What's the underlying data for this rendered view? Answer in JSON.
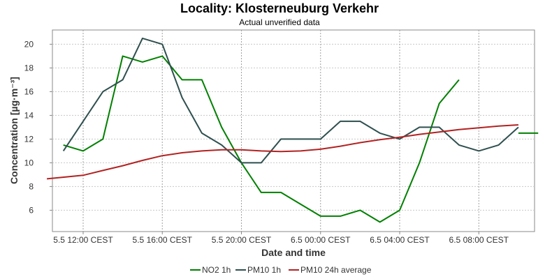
{
  "chart_data": {
    "type": "line",
    "title": "Locality: Klosterneuburg Verkehr",
    "subtitle": "Actual unverified data",
    "xlabel": "Date and time",
    "ylabel": "Concentration [µg·m⁻³]",
    "x_ticks": [
      "5.5 12:00 CEST",
      "5.5 16:00 CEST",
      "5.5 20:00 CEST",
      "6.5 00:00 CEST",
      "6.5 04:00 CEST",
      "6.5 08:00 CEST"
    ],
    "y_ticks": [
      "6",
      "8",
      "10",
      "12",
      "14",
      "16",
      "18",
      "20"
    ],
    "ylim": [
      4.2,
      21.2
    ],
    "xlim": [
      "2024-05-05 10:10",
      "2024-05-06 11:10"
    ],
    "grid": true,
    "legend_position": "bottom",
    "series": [
      {
        "name": "NO2 1h",
        "color": "#008000",
        "points": [
          {
            "x": "2024-05-05 11:00",
            "y": 11.5
          },
          {
            "x": "2024-05-05 12:00",
            "y": 11.0
          },
          {
            "x": "2024-05-05 13:00",
            "y": 12.0
          },
          {
            "x": "2024-05-05 14:00",
            "y": 19.0
          },
          {
            "x": "2024-05-05 15:00",
            "y": 18.5
          },
          {
            "x": "2024-05-05 16:00",
            "y": 19.0
          },
          {
            "x": "2024-05-05 17:00",
            "y": 17.0
          },
          {
            "x": "2024-05-05 18:00",
            "y": 17.0
          },
          {
            "x": "2024-05-05 19:00",
            "y": 13.0
          },
          {
            "x": "2024-05-05 20:00",
            "y": 10.0
          },
          {
            "x": "2024-05-05 21:00",
            "y": 7.5
          },
          {
            "x": "2024-05-05 22:00",
            "y": 7.5
          },
          {
            "x": "2024-05-05 23:00",
            "y": 6.5
          },
          {
            "x": "2024-05-06 00:00",
            "y": 5.5
          },
          {
            "x": "2024-05-06 01:00",
            "y": 5.5
          },
          {
            "x": "2024-05-06 02:00",
            "y": 6.0
          },
          {
            "x": "2024-05-06 03:00",
            "y": 5.0
          },
          {
            "x": "2024-05-06 04:00",
            "y": 6.0
          },
          {
            "x": "2024-05-06 05:00",
            "y": 10.0
          },
          {
            "x": "2024-05-06 06:00",
            "y": 15.0
          },
          {
            "x": "2024-05-06 07:00",
            "y": 17.0
          },
          {
            "x": "2024-05-06 08:00",
            "y": null
          },
          {
            "x": "2024-05-06 09:00",
            "y": null
          },
          {
            "x": "2024-05-06 10:00",
            "y": 12.5
          },
          {
            "x": "2024-05-06 11:00",
            "y": 12.5
          }
        ]
      },
      {
        "name": "PM10 1h",
        "color": "#2f4f4f",
        "points": [
          {
            "x": "2024-05-05 11:00",
            "y": 11.0
          },
          {
            "x": "2024-05-05 12:00",
            "y": 13.5
          },
          {
            "x": "2024-05-05 13:00",
            "y": 16.0
          },
          {
            "x": "2024-05-05 14:00",
            "y": 17.0
          },
          {
            "x": "2024-05-05 15:00",
            "y": 20.5
          },
          {
            "x": "2024-05-05 16:00",
            "y": 20.0
          },
          {
            "x": "2024-05-05 17:00",
            "y": 15.5
          },
          {
            "x": "2024-05-05 18:00",
            "y": 12.5
          },
          {
            "x": "2024-05-05 19:00",
            "y": 11.5
          },
          {
            "x": "2024-05-05 20:00",
            "y": 10.0
          },
          {
            "x": "2024-05-05 21:00",
            "y": 10.0
          },
          {
            "x": "2024-05-05 22:00",
            "y": 12.0
          },
          {
            "x": "2024-05-05 23:00",
            "y": 12.0
          },
          {
            "x": "2024-05-06 00:00",
            "y": 12.0
          },
          {
            "x": "2024-05-06 01:00",
            "y": 13.5
          },
          {
            "x": "2024-05-06 02:00",
            "y": 13.5
          },
          {
            "x": "2024-05-06 03:00",
            "y": 12.5
          },
          {
            "x": "2024-05-06 04:00",
            "y": 12.0
          },
          {
            "x": "2024-05-06 05:00",
            "y": 13.0
          },
          {
            "x": "2024-05-06 06:00",
            "y": 13.0
          },
          {
            "x": "2024-05-06 07:00",
            "y": 11.5
          },
          {
            "x": "2024-05-06 08:00",
            "y": 11.0
          },
          {
            "x": "2024-05-06 09:00",
            "y": 11.5
          },
          {
            "x": "2024-05-06 10:00",
            "y": 13.0
          }
        ]
      },
      {
        "name": "PM10 24h average",
        "color": "#b22222",
        "points": [
          {
            "x": "2024-05-05 10:10",
            "y": 8.65
          },
          {
            "x": "2024-05-05 12:00",
            "y": 8.95
          },
          {
            "x": "2024-05-05 13:00",
            "y": 9.35
          },
          {
            "x": "2024-05-05 14:00",
            "y": 9.75
          },
          {
            "x": "2024-05-05 15:00",
            "y": 10.2
          },
          {
            "x": "2024-05-05 16:00",
            "y": 10.6
          },
          {
            "x": "2024-05-05 17:00",
            "y": 10.85
          },
          {
            "x": "2024-05-05 18:00",
            "y": 11.0
          },
          {
            "x": "2024-05-05 19:00",
            "y": 11.1
          },
          {
            "x": "2024-05-05 20:00",
            "y": 11.1
          },
          {
            "x": "2024-05-05 21:00",
            "y": 11.0
          },
          {
            "x": "2024-05-05 22:00",
            "y": 10.95
          },
          {
            "x": "2024-05-05 23:00",
            "y": 11.0
          },
          {
            "x": "2024-05-06 00:00",
            "y": 11.15
          },
          {
            "x": "2024-05-06 01:00",
            "y": 11.4
          },
          {
            "x": "2024-05-06 02:00",
            "y": 11.7
          },
          {
            "x": "2024-05-06 03:00",
            "y": 11.95
          },
          {
            "x": "2024-05-06 04:00",
            "y": 12.15
          },
          {
            "x": "2024-05-06 05:00",
            "y": 12.4
          },
          {
            "x": "2024-05-06 06:00",
            "y": 12.6
          },
          {
            "x": "2024-05-06 07:00",
            "y": 12.8
          },
          {
            "x": "2024-05-06 08:00",
            "y": 12.95
          },
          {
            "x": "2024-05-06 09:00",
            "y": 13.1
          },
          {
            "x": "2024-05-06 10:00",
            "y": 13.2
          }
        ]
      }
    ]
  }
}
